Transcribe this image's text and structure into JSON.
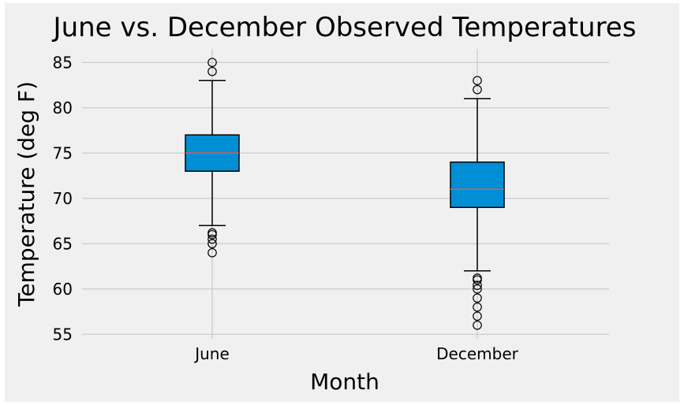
{
  "chart_data": {
    "type": "box",
    "title": "June vs. December Observed Temperatures",
    "xlabel": "Month",
    "ylabel": "Temperature (deg F)",
    "ylim": [
      54.5,
      86.5
    ],
    "yticks": [
      55,
      60,
      65,
      70,
      75,
      80,
      85
    ],
    "grid": true,
    "categories": [
      "June",
      "December"
    ],
    "boxes": [
      {
        "label": "June",
        "whisker_low": 67,
        "q1": 73,
        "median": 75,
        "q3": 77,
        "whisker_high": 83,
        "outliers": [
          64,
          65,
          65.5,
          66,
          66.2,
          84,
          85
        ]
      },
      {
        "label": "December",
        "whisker_low": 62,
        "q1": 69,
        "median": 71,
        "q3": 74,
        "whisker_high": 81,
        "outliers": [
          56,
          57,
          58,
          59,
          60,
          60.4,
          61,
          61.2,
          82,
          83
        ]
      }
    ],
    "colors": {
      "figure_background": "#f0f0f0",
      "axes_background": "#f0f0f0",
      "grid": "#cbcbcb",
      "box_fill": "#008fd5",
      "median_line": "#fc4f30",
      "lines": "#000000"
    }
  }
}
